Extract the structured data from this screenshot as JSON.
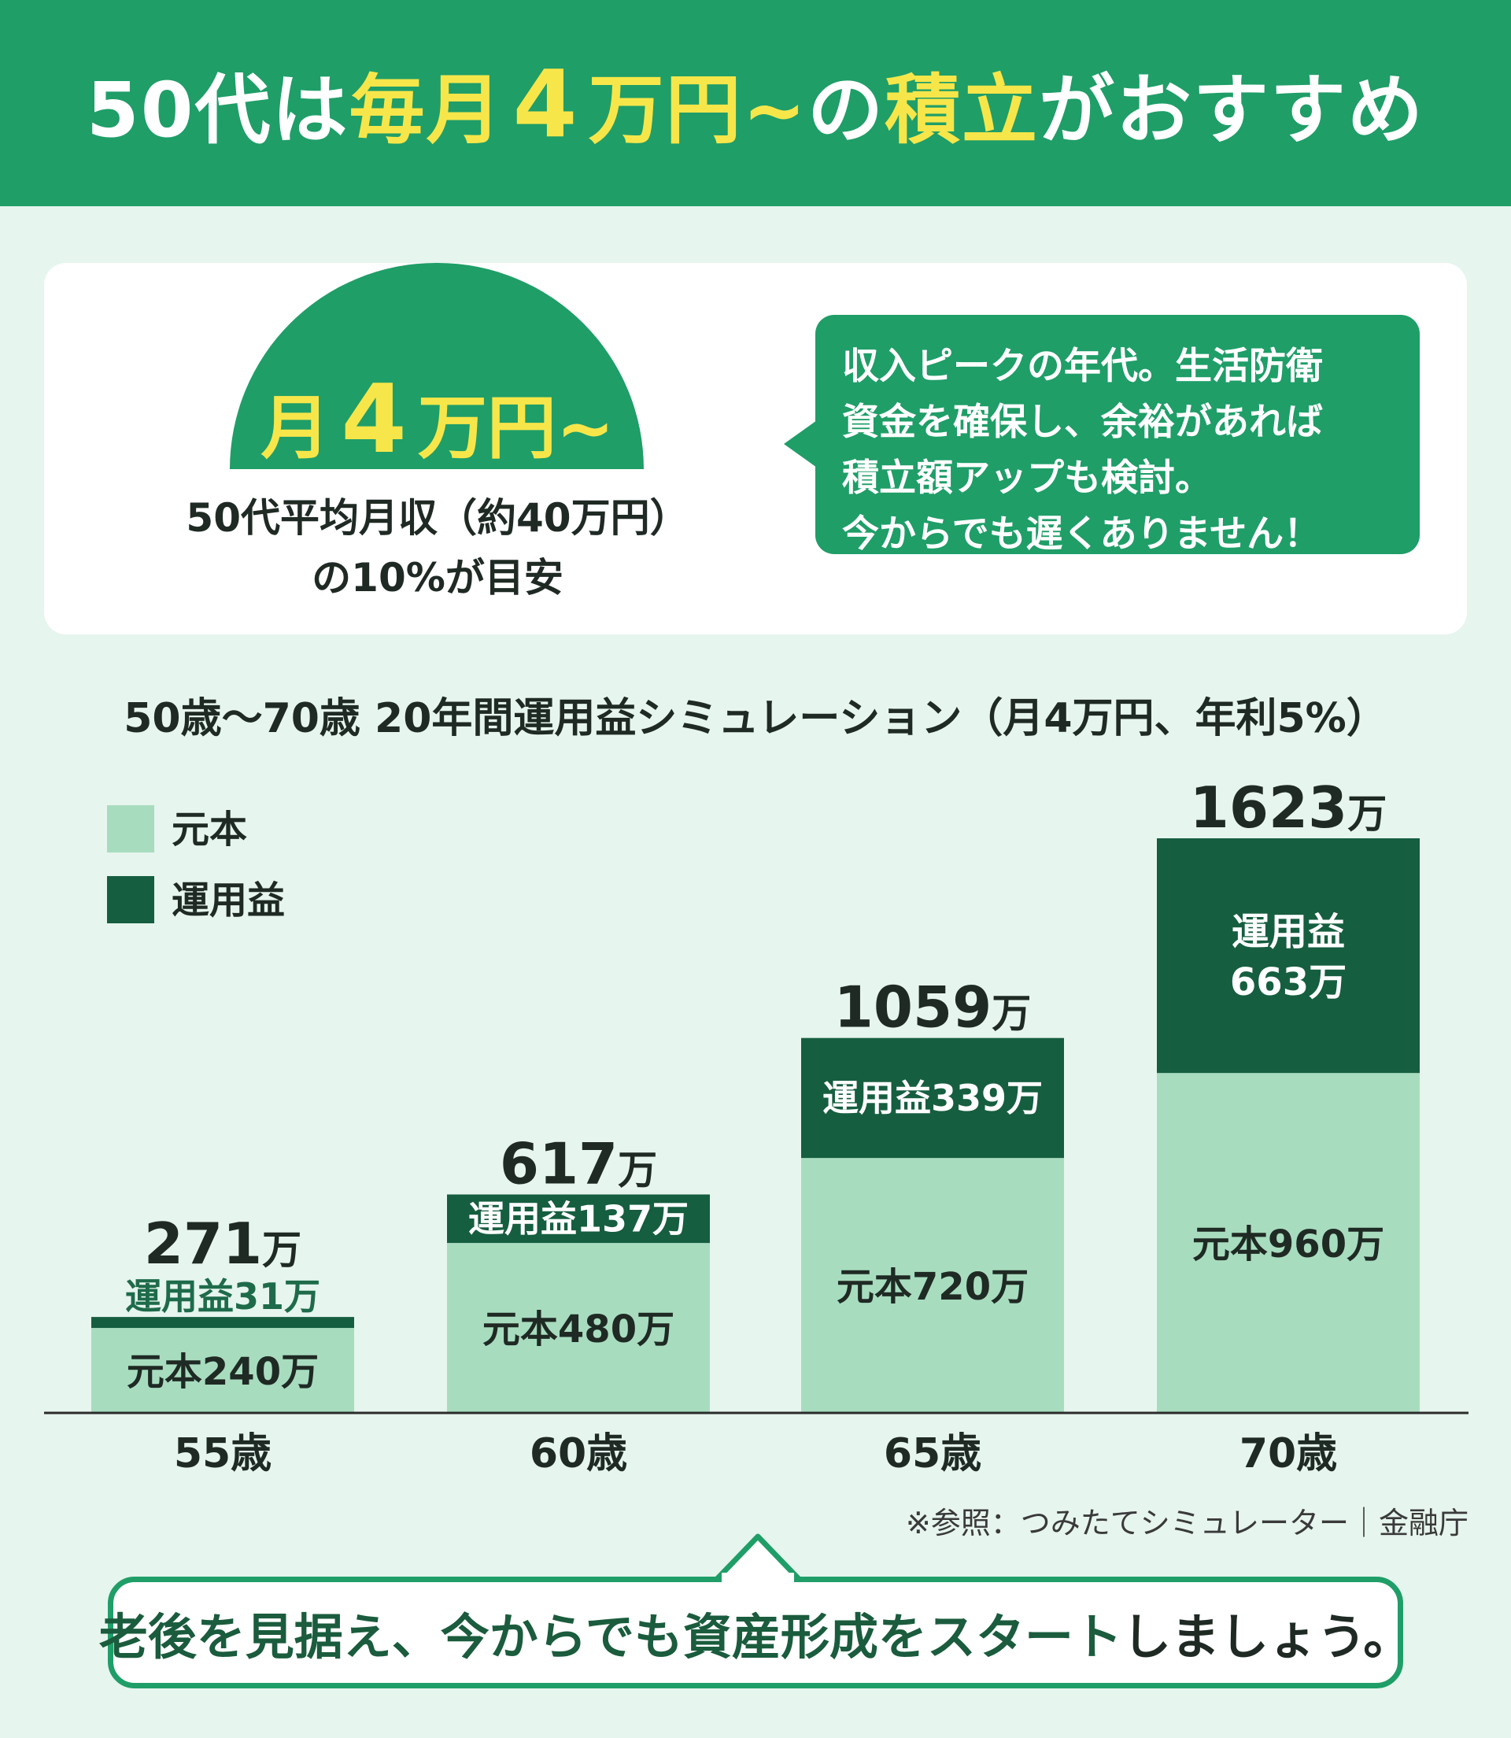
{
  "header": {
    "title_part1": "50代は",
    "title_hl1": "毎月",
    "title_big": "4",
    "title_hl2": "万円~",
    "title_part2": "の",
    "title_hl3": "積立",
    "title_part3": "がおすすめ"
  },
  "intro": {
    "dome_prefix": "月",
    "dome_big": "4",
    "dome_suffix": "万円~",
    "caption_line1": "50代平均月収（約40万円）",
    "caption_line2": "の10%が目安",
    "bubble_lines": [
      "収入ピークの年代。生活防衛",
      "資金を確保し、余裕があれば",
      "積立額アップも検討。",
      "今からでも遅くありません！"
    ]
  },
  "colors": {
    "brand_green": "#1f9e68",
    "highlight_yellow": "#f7e64a",
    "principal": "#a8dcbf",
    "gain": "#165e40"
  },
  "chart_data": {
    "type": "bar",
    "stacked": true,
    "title": "50歳〜70歳 20年間運用益シミュレーション（月4万円、年利5%）",
    "categories": [
      "55歳",
      "60歳",
      "65歳",
      "70歳"
    ],
    "series": [
      {
        "name": "元本",
        "values": [
          240,
          480,
          720,
          960
        ],
        "color": "#a8dcbf",
        "labels": [
          "元本240万",
          "元本480万",
          "元本720万",
          "元本960万"
        ]
      },
      {
        "name": "運用益",
        "values": [
          31,
          137,
          339,
          663
        ],
        "color": "#165e40",
        "labels": [
          "運用益31万",
          "運用益137万",
          "運用益339万",
          "運用益\n663万"
        ]
      }
    ],
    "totals": [
      271,
      617,
      1059,
      1623
    ],
    "total_labels": [
      "271",
      "617",
      "1059",
      "1623"
    ],
    "total_unit": "万",
    "legend_position": "top-left",
    "grid": false,
    "ylim": [
      0,
      1623
    ]
  },
  "footer": {
    "source": "※参照：つみたてシミュレーター｜金融庁",
    "cta_green": "老後を見据え、今からでも資産形成をスタート",
    "cta_dark": "しましょう。"
  }
}
